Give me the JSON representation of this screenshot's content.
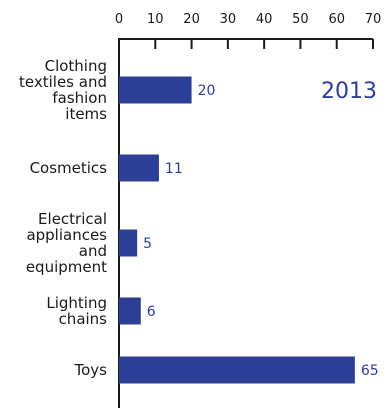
{
  "chart_data": {
    "type": "bar",
    "orientation": "horizontal",
    "categories": [
      [
        "Clothing",
        "textiles and",
        "fashion",
        "items"
      ],
      [
        "Cosmetics"
      ],
      [
        "Electrical",
        "appliances",
        "and",
        "equipment"
      ],
      [
        "Lighting",
        "chains"
      ],
      [
        "Toys"
      ]
    ],
    "values": [
      20,
      11,
      5,
      6,
      65
    ],
    "value_labels": [
      "20",
      "11",
      "5",
      "6",
      "65"
    ],
    "xlim": [
      0,
      70
    ],
    "x_ticks": [
      0,
      10,
      20,
      30,
      40,
      50,
      60,
      70
    ],
    "x_tick_labels": [
      "0",
      "10",
      "20",
      "30",
      "40",
      "50",
      "60",
      "70"
    ],
    "axis_position": "top",
    "annotation": "2013",
    "colors": {
      "bar": "#2b3f96",
      "label": "#2b3f96",
      "axis": "#1a1a1a",
      "text": "#1a1a1a"
    }
  }
}
